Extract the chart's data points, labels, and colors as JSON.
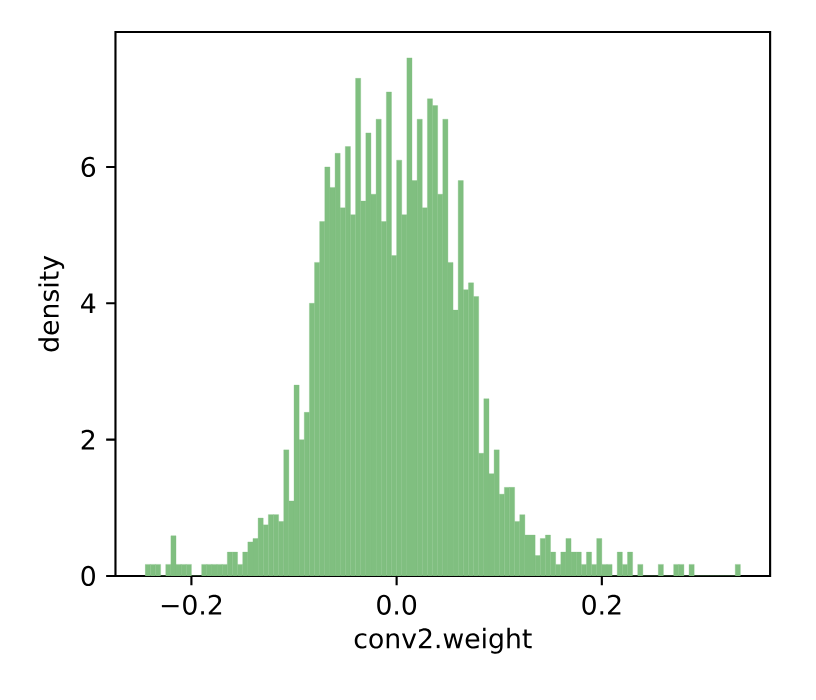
{
  "chart_data": {
    "type": "histogram",
    "xlabel": "conv2.weight",
    "ylabel": "density",
    "color": "#80bf80",
    "bins": [
      -0.245,
      -0.24,
      -0.235,
      -0.23,
      -0.225,
      -0.22,
      -0.215,
      -0.21,
      -0.205,
      -0.2,
      -0.195,
      -0.19,
      -0.185,
      -0.18,
      -0.175,
      -0.17,
      -0.165,
      -0.16,
      -0.155,
      -0.15,
      -0.145,
      -0.14,
      -0.135,
      -0.13,
      -0.125,
      -0.12,
      -0.115,
      -0.11,
      -0.105,
      -0.1,
      -0.095,
      -0.09,
      -0.085,
      -0.08,
      -0.075,
      -0.07,
      -0.065,
      -0.06,
      -0.055,
      -0.05,
      -0.045,
      -0.04,
      -0.035,
      -0.03,
      -0.025,
      -0.02,
      -0.015,
      -0.01,
      -0.005,
      0.0,
      0.005,
      0.01,
      0.015,
      0.02,
      0.025,
      0.03,
      0.035,
      0.04,
      0.045,
      0.05,
      0.055,
      0.06,
      0.065,
      0.07,
      0.075,
      0.08,
      0.085,
      0.09,
      0.095,
      0.1,
      0.105,
      0.11,
      0.115,
      0.12,
      0.125,
      0.13,
      0.135,
      0.14,
      0.145,
      0.15,
      0.155,
      0.16,
      0.165,
      0.17,
      0.175,
      0.18,
      0.185,
      0.19,
      0.195,
      0.2,
      0.205,
      0.21,
      0.215,
      0.22,
      0.225,
      0.23,
      0.235,
      0.24,
      0.245,
      0.25,
      0.255,
      0.26,
      0.265,
      0.27,
      0.275,
      0.28,
      0.285,
      0.29,
      0.295,
      0.3,
      0.305,
      0.31,
      0.315,
      0.32,
      0.325,
      0.33,
      0.335
    ],
    "values": [
      0.17,
      0.17,
      0.17,
      0,
      0.17,
      0.59,
      0.17,
      0.17,
      0.17,
      0,
      0,
      0.17,
      0.17,
      0.17,
      0.17,
      0.17,
      0.35,
      0.35,
      0.17,
      0.35,
      0.5,
      0.55,
      0.85,
      0.75,
      0.9,
      0.9,
      0.8,
      1.85,
      1.1,
      2.8,
      2.0,
      2.4,
      4.0,
      4.6,
      5.2,
      6.0,
      5.7,
      6.2,
      5.4,
      6.3,
      5.3,
      7.3,
      5.5,
      6.5,
      5.6,
      6.7,
      5.2,
      7.1,
      4.7,
      6.1,
      5.3,
      7.6,
      5.8,
      6.7,
      5.4,
      7.0,
      6.9,
      5.6,
      6.7,
      4.6,
      3.9,
      5.8,
      4.2,
      4.3,
      4.1,
      1.8,
      2.6,
      1.5,
      1.85,
      1.2,
      1.3,
      1.3,
      0.8,
      0.9,
      0.6,
      0.6,
      0.3,
      0.55,
      0.6,
      0.35,
      0.17,
      0.35,
      0.55,
      0.35,
      0.35,
      0.17,
      0.35,
      0.17,
      0.55,
      0.17,
      0.17,
      0,
      0.35,
      0.17,
      0.35,
      0,
      0.17,
      0,
      0,
      0,
      0.17,
      0,
      0,
      0.17,
      0.17,
      0,
      0.17,
      0,
      0,
      0,
      0,
      0,
      0,
      0,
      0,
      0.17
    ],
    "xlim": [
      -0.274,
      0.364
    ],
    "ylim": [
      0,
      7.98
    ],
    "xticks": [
      {
        "value": -0.2,
        "label": "−0.2"
      },
      {
        "value": 0.0,
        "label": "0.0"
      },
      {
        "value": 0.2,
        "label": "0.2"
      }
    ],
    "yticks": [
      0,
      2,
      4,
      6
    ],
    "grid": false
  }
}
